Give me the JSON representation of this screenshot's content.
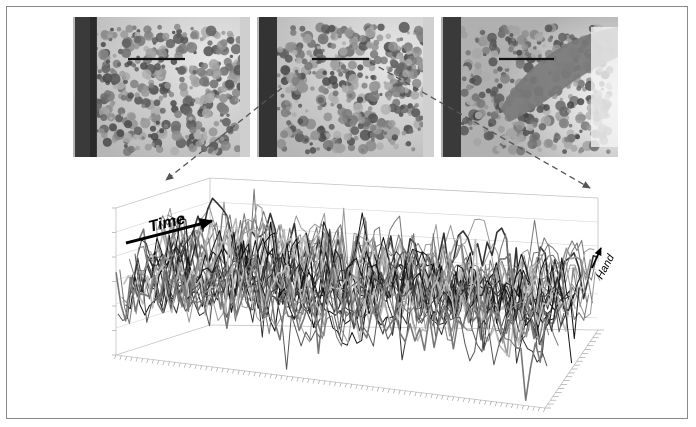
{
  "figure": {
    "photo_frames": [
      {
        "name": "frame-1",
        "hand_present": false
      },
      {
        "name": "frame-2",
        "hand_present": false
      },
      {
        "name": "frame-3",
        "hand_present": true
      }
    ],
    "time_label": "Time",
    "hand_label": "Hand",
    "colors": {
      "arrow": "#555555",
      "line_dark": "#1a1a1a",
      "line_mid": "#5a5a5a",
      "line_light": "#9a9a9a",
      "grid": "#bdbdbd",
      "frame_border": "#8a8a8a"
    }
  }
}
